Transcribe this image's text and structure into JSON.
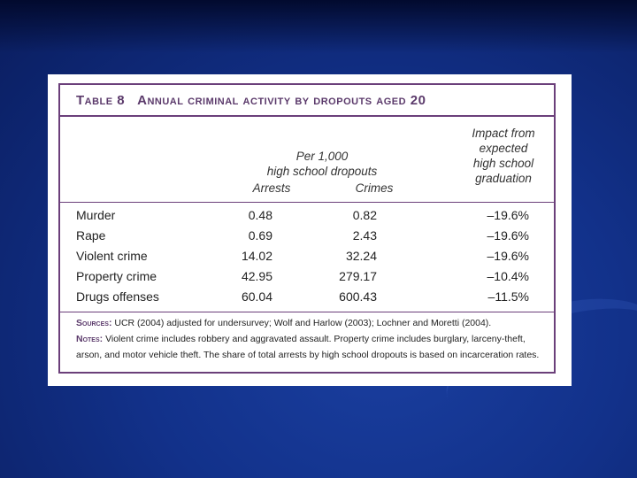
{
  "table": {
    "number": "Table 8",
    "title": "Annual criminal activity by dropouts aged 20",
    "header": {
      "group_line1": "Per 1,000",
      "group_line2": "high school dropouts",
      "col_arrests": "Arrests",
      "col_crimes": "Crimes",
      "impact_line1": "Impact from",
      "impact_line2": "expected",
      "impact_line3": "high school",
      "impact_line4": "graduation"
    },
    "rows": [
      {
        "label": "Murder",
        "arrests": "0.48",
        "crimes": "0.82",
        "impact": "–19.6%"
      },
      {
        "label": "Rape",
        "arrests": "0.69",
        "crimes": "2.43",
        "impact": "–19.6%"
      },
      {
        "label": "Violent crime",
        "arrests": "14.02",
        "crimes": "32.24",
        "impact": "–19.6%"
      },
      {
        "label": "Property crime",
        "arrests": "42.95",
        "crimes": "279.17",
        "impact": "–10.4%"
      },
      {
        "label": "Drugs offenses",
        "arrests": "60.04",
        "crimes": "600.43",
        "impact": "–11.5%"
      }
    ],
    "sources_label": "Sources:",
    "sources_text": "UCR (2004) adjusted for undersurvey; Wolf and Harlow (2003); Lochner and Moretti (2004).",
    "notes_label": "Notes:",
    "notes_text": "Violent crime includes robbery and aggravated assault. Property crime includes burglary, larceny-theft, arson, and motor vehicle theft. The share of total arrests by high school dropouts is based on incarceration rates."
  },
  "colors": {
    "background": "#12318a",
    "frame": "#6b3f7a",
    "title": "#5b3a6b"
  }
}
